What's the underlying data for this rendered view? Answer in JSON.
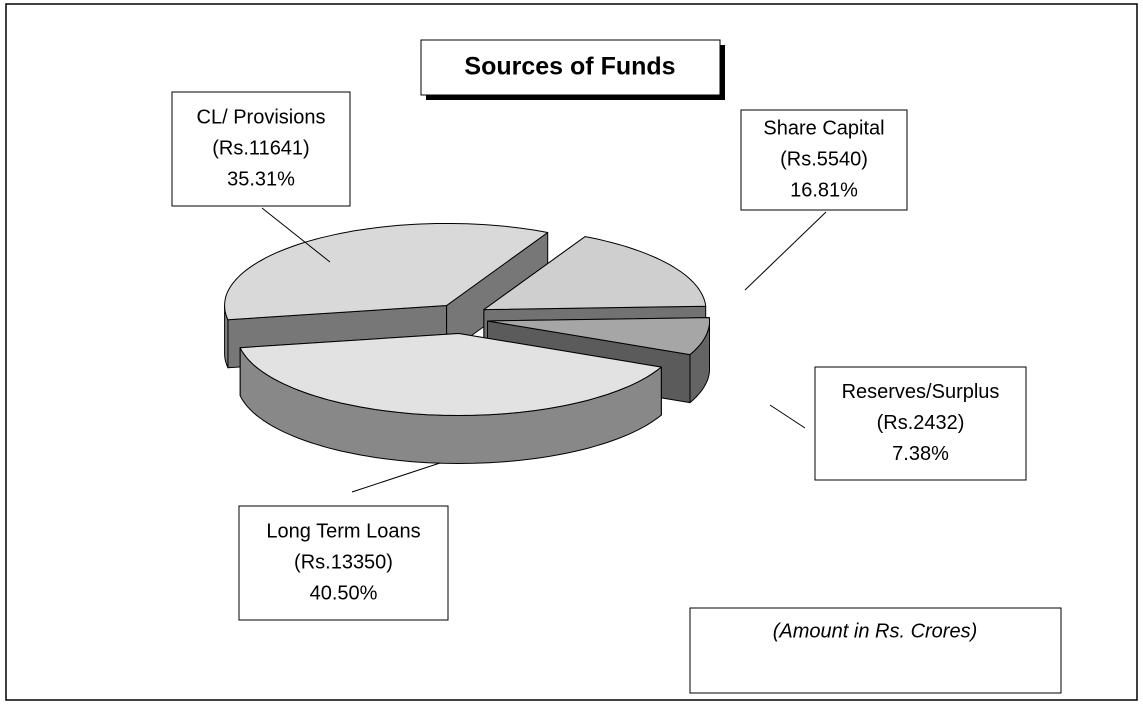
{
  "chart_data": {
    "type": "pie",
    "title": "Sources of Funds",
    "categories": [
      "CL/ Provisions",
      "Share Capital",
      "Reserves/Surplus",
      "Long Term Loans"
    ],
    "amounts": [
      "(Rs.11641)",
      "(Rs.5540)",
      "(Rs.2432)",
      "(Rs.13350)"
    ],
    "values": [
      35.31,
      16.81,
      7.38,
      40.5
    ],
    "value_labels": [
      "35.31%",
      "16.81%",
      "7.38%",
      "40.50%"
    ],
    "colors": [
      "#d9d9d9",
      "#cfcfcf",
      "#a6a6a6",
      "#e2e2e2"
    ],
    "note": "(Amount in Rs. Crores)"
  }
}
